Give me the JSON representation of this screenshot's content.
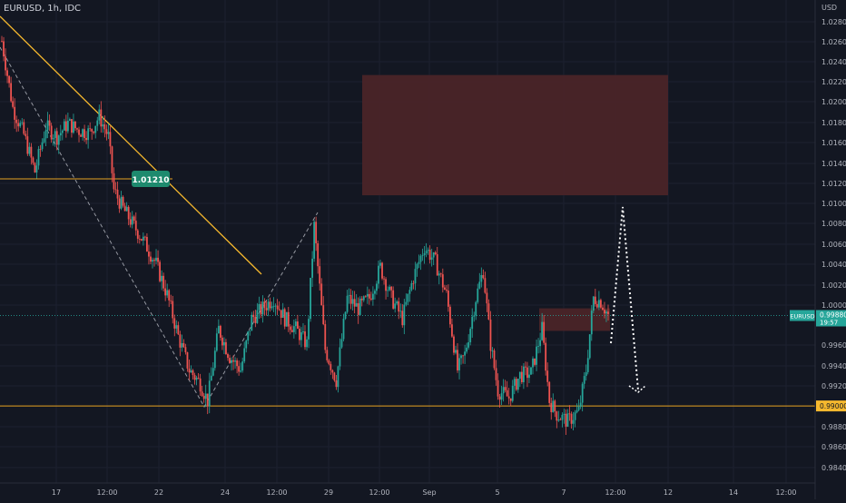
{
  "header": {
    "symbol_line": "EURUSD, 1h, IDC"
  },
  "colors": {
    "background": "#131722",
    "grid": "#1c2030",
    "text": "#b2b5be",
    "up": "#26a69a",
    "down": "#ef5350",
    "zone": "#4a2428",
    "trendline": "#f5b82e",
    "support": "#e6a321",
    "annotation": "#ffffff",
    "price_line": "#26a69a",
    "price_tag": "#26a69a",
    "support_tag": "#f5b82e",
    "callout": "#1e8a6e"
  },
  "chart_data": {
    "type": "candlestick",
    "y_axis": {
      "title": "USD",
      "ticks": [
        "1.02800",
        "1.02600",
        "1.02400",
        "1.02200",
        "1.02000",
        "1.01800",
        "1.01600",
        "1.01400",
        "1.01200",
        "1.01000",
        "1.00800",
        "1.00600",
        "1.00400",
        "1.00200",
        "1.00000",
        "0.99600",
        "0.99400",
        "0.99200",
        "0.98800",
        "0.98600",
        "0.98400"
      ],
      "range": [
        0.9825,
        1.0295
      ]
    },
    "x_axis": {
      "ticks": [
        "17",
        "12:00",
        "22",
        "24",
        "12:00",
        "29",
        "12:00",
        "Sep",
        "5",
        "7",
        "12:00",
        "12",
        "14",
        "12:00"
      ]
    },
    "current_price": {
      "symbol": "EURUSD",
      "value": "0.99880",
      "time": "19:57"
    },
    "support_level": {
      "value": 0.99,
      "label": "0.99000"
    },
    "callout": {
      "value": 1.0121,
      "label": "1.01210"
    },
    "zones": [
      {
        "name": "supply-zone-large",
        "price_top": 1.0222,
        "price_bottom": 1.0105
      },
      {
        "name": "supply-zone-small",
        "price_top": 0.9995,
        "price_bottom": 0.9973
      }
    ],
    "price_path": [
      {
        "i": 0,
        "p": 1.0255
      },
      {
        "i": 6,
        "p": 1.019
      },
      {
        "i": 12,
        "p": 1.0164
      },
      {
        "i": 18,
        "p": 1.0128
      },
      {
        "i": 24,
        "p": 1.0172
      },
      {
        "i": 30,
        "p": 1.0162
      },
      {
        "i": 36,
        "p": 1.0175
      },
      {
        "i": 42,
        "p": 1.0168
      },
      {
        "i": 48,
        "p": 1.0166
      },
      {
        "i": 53,
        "p": 1.0182
      },
      {
        "i": 58,
        "p": 1.0162
      },
      {
        "i": 61,
        "p": 1.011
      },
      {
        "i": 66,
        "p": 1.0092
      },
      {
        "i": 72,
        "p": 1.0075
      },
      {
        "i": 78,
        "p": 1.0058
      },
      {
        "i": 84,
        "p": 1.0038
      },
      {
        "i": 90,
        "p": 1.0008
      },
      {
        "i": 96,
        "p": 0.9968
      },
      {
        "i": 102,
        "p": 0.9935
      },
      {
        "i": 108,
        "p": 0.9922
      },
      {
        "i": 112,
        "p": 0.9905
      },
      {
        "i": 118,
        "p": 0.9975
      },
      {
        "i": 124,
        "p": 0.9948
      },
      {
        "i": 130,
        "p": 0.9935
      },
      {
        "i": 136,
        "p": 0.9985
      },
      {
        "i": 142,
        "p": 0.9995
      },
      {
        "i": 148,
        "p": 1.0005
      },
      {
        "i": 154,
        "p": 0.9985
      },
      {
        "i": 160,
        "p": 0.9975
      },
      {
        "i": 166,
        "p": 0.996
      },
      {
        "i": 170,
        "p": 1.0075
      },
      {
        "i": 176,
        "p": 0.9955
      },
      {
        "i": 182,
        "p": 0.9925
      },
      {
        "i": 188,
        "p": 1.0005
      },
      {
        "i": 194,
        "p": 0.9995
      },
      {
        "i": 200,
        "p": 1.0005
      },
      {
        "i": 206,
        "p": 1.0035
      },
      {
        "i": 212,
        "p": 1.0005
      },
      {
        "i": 218,
        "p": 0.9985
      },
      {
        "i": 224,
        "p": 1.0025
      },
      {
        "i": 230,
        "p": 1.0055
      },
      {
        "i": 236,
        "p": 1.004
      },
      {
        "i": 242,
        "p": 1.0008
      },
      {
        "i": 248,
        "p": 0.9935
      },
      {
        "i": 252,
        "p": 0.995
      },
      {
        "i": 258,
        "p": 1.0005
      },
      {
        "i": 262,
        "p": 1.0032
      },
      {
        "i": 266,
        "p": 0.996
      },
      {
        "i": 270,
        "p": 0.9915
      },
      {
        "i": 276,
        "p": 0.9908
      },
      {
        "i": 282,
        "p": 0.993
      },
      {
        "i": 288,
        "p": 0.9932
      },
      {
        "i": 294,
        "p": 0.9975
      },
      {
        "i": 298,
        "p": 0.9905
      },
      {
        "i": 302,
        "p": 0.9892
      },
      {
        "i": 308,
        "p": 0.9885
      },
      {
        "i": 314,
        "p": 0.9895
      },
      {
        "i": 318,
        "p": 0.9935
      },
      {
        "i": 322,
        "p": 1.0005
      },
      {
        "i": 326,
        "p": 1.0002
      },
      {
        "i": 330,
        "p": 0.9988
      }
    ]
  }
}
